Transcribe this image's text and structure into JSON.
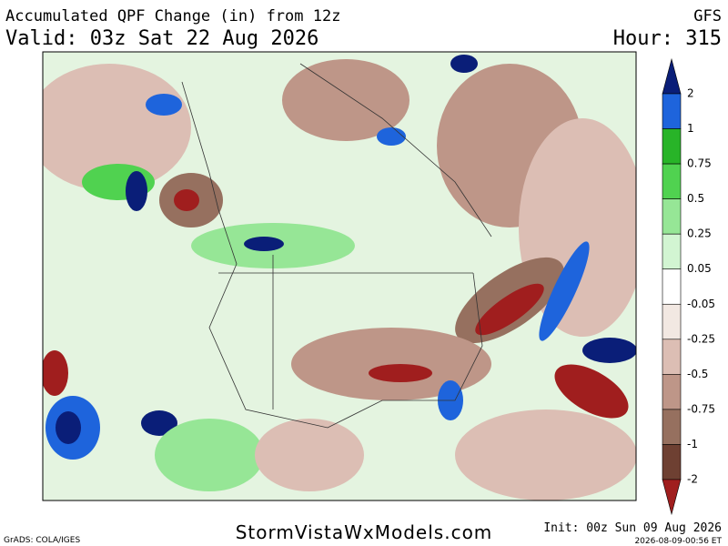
{
  "header": {
    "title": "Accumulated QPF Change (in) from 12z",
    "model": "GFS",
    "valid": "Valid: 03z Sat 22 Aug 2026",
    "hour": "Hour: 315"
  },
  "colorbar": {
    "levels": [
      "2",
      "1",
      "0.75",
      "0.5",
      "0.25",
      "0.05",
      "-0.05",
      "-0.25",
      "-0.5",
      "-0.75",
      "-1",
      "-2"
    ],
    "colors": [
      "#0a1e78",
      "#1e64dc",
      "#28b428",
      "#50d250",
      "#96e696",
      "#d2f5d2",
      "#ffffff",
      "#f2e8e2",
      "#dcbeb4",
      "#be9688",
      "#96705f",
      "#6e4032",
      "#a01e1e"
    ]
  },
  "footer": {
    "credit": "GrADS: COLA/IGES",
    "site": "StormVistaWxModels.com",
    "init": "Init: 00z Sun 09 Aug 2026",
    "stamp": "2026-08-09-00:56 ET"
  }
}
